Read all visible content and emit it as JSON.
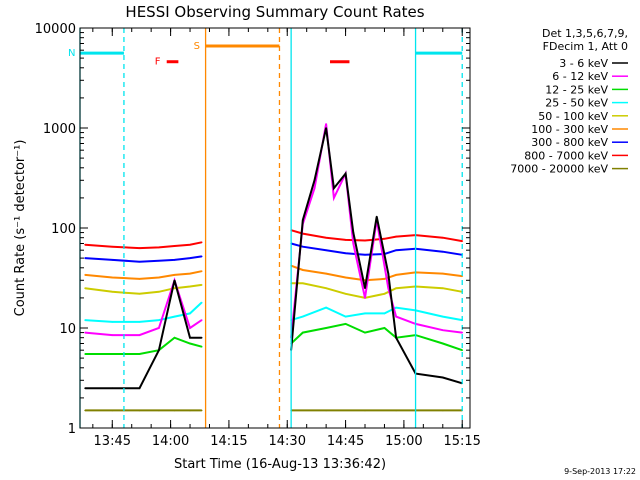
{
  "chart_data": {
    "type": "line",
    "title": "HESSI Observing Summary Count Rates",
    "xlabel": "Start Time (16-Aug-13 13:36:42)",
    "ylabel": "Count Rate (s⁻¹ detector⁻¹)",
    "y_scale": "log",
    "ylim": [
      1,
      10000
    ],
    "xlim": [
      "13:36:42",
      "15:17:00"
    ],
    "y_ticks": [
      "1",
      "10",
      "100",
      "1000",
      "10000"
    ],
    "x_ticks": [
      "13:45",
      "14:00",
      "14:15",
      "14:30",
      "14:45",
      "15:00",
      "15:15"
    ],
    "legend_header": [
      "Det 1,3,5,6,7,9,",
      "FDecim 1, Att 0"
    ],
    "legend_placement": "right",
    "series": [
      {
        "name": "3 - 6 keV",
        "color": "#000000",
        "x": [
          "13:38",
          "13:45",
          "13:52",
          "13:57",
          "14:01",
          "14:05",
          "14:08",
          "14:31",
          "14:34",
          "14:37",
          "14:40",
          "14:42",
          "14:45",
          "14:47",
          "14:50",
          "14:53",
          "14:56",
          "14:58",
          "15:03",
          "15:10",
          "15:15"
        ],
        "y": [
          2.5,
          2.5,
          2.5,
          6,
          30,
          8,
          8,
          6,
          120,
          300,
          1000,
          250,
          350,
          90,
          25,
          130,
          35,
          8,
          3.5,
          3.2,
          2.8
        ]
      },
      {
        "name": "6 - 12 keV",
        "color": "#ff00ff",
        "x": [
          "13:38",
          "13:45",
          "13:52",
          "13:57",
          "14:01",
          "14:05",
          "14:08",
          "14:31",
          "14:34",
          "14:37",
          "14:40",
          "14:42",
          "14:45",
          "14:47",
          "14:50",
          "14:53",
          "14:56",
          "14:58",
          "15:03",
          "15:10",
          "15:15"
        ],
        "y": [
          9,
          8.5,
          8.5,
          10,
          30,
          10,
          12,
          8,
          110,
          250,
          1100,
          200,
          350,
          70,
          20,
          120,
          25,
          13,
          11,
          9.5,
          9
        ]
      },
      {
        "name": "12 - 25 keV",
        "color": "#00dd00",
        "x": [
          "13:38",
          "13:45",
          "13:52",
          "13:57",
          "14:01",
          "14:05",
          "14:08",
          "14:31",
          "14:34",
          "14:40",
          "14:45",
          "14:50",
          "14:55",
          "14:58",
          "15:03",
          "15:10",
          "15:15"
        ],
        "y": [
          5.5,
          5.5,
          5.5,
          6,
          8,
          7,
          6.5,
          7,
          9,
          10,
          11,
          9,
          10,
          8,
          8.5,
          7,
          6
        ]
      },
      {
        "name": "25 - 50 keV",
        "color": "#00ffff",
        "x": [
          "13:38",
          "13:45",
          "13:52",
          "13:57",
          "14:01",
          "14:05",
          "14:08",
          "14:31",
          "14:34",
          "14:40",
          "14:45",
          "14:50",
          "14:55",
          "14:58",
          "15:03",
          "15:10",
          "15:15"
        ],
        "y": [
          12,
          11.5,
          11.5,
          12,
          13,
          14,
          18,
          12,
          13,
          16,
          13,
          14,
          14,
          16,
          15,
          13,
          12
        ]
      },
      {
        "name": "50 - 100 keV",
        "color": "#cccc00",
        "x": [
          "13:38",
          "13:45",
          "13:52",
          "13:57",
          "14:01",
          "14:05",
          "14:08",
          "14:31",
          "14:34",
          "14:40",
          "14:45",
          "14:50",
          "14:55",
          "14:58",
          "15:03",
          "15:10",
          "15:15"
        ],
        "y": [
          25,
          23,
          22,
          23,
          25,
          26,
          27,
          28,
          28,
          25,
          22,
          20,
          22,
          25,
          26,
          25,
          23
        ]
      },
      {
        "name": "100 - 300 keV",
        "color": "#ff8800",
        "x": [
          "13:38",
          "13:45",
          "13:52",
          "13:57",
          "14:01",
          "14:05",
          "14:08",
          "14:31",
          "14:34",
          "14:40",
          "14:45",
          "14:50",
          "14:55",
          "14:58",
          "15:03",
          "15:10",
          "15:15"
        ],
        "y": [
          34,
          32,
          31,
          32,
          34,
          35,
          37,
          42,
          38,
          35,
          32,
          30,
          31,
          34,
          36,
          35,
          33
        ]
      },
      {
        "name": "300 - 800 keV",
        "color": "#0000ff",
        "x": [
          "13:38",
          "13:45",
          "13:52",
          "13:57",
          "14:01",
          "14:05",
          "14:08",
          "14:31",
          "14:34",
          "14:40",
          "14:45",
          "14:50",
          "14:55",
          "14:58",
          "15:03",
          "15:10",
          "15:15"
        ],
        "y": [
          50,
          48,
          46,
          47,
          48,
          50,
          52,
          70,
          65,
          60,
          56,
          54,
          55,
          60,
          62,
          58,
          54
        ]
      },
      {
        "name": "800 - 7000 keV",
        "color": "#ff0000",
        "x": [
          "13:38",
          "13:45",
          "13:52",
          "13:57",
          "14:01",
          "14:05",
          "14:08",
          "14:31",
          "14:34",
          "14:40",
          "14:45",
          "14:50",
          "14:55",
          "14:58",
          "15:03",
          "15:10",
          "15:15"
        ],
        "y": [
          68,
          65,
          63,
          64,
          66,
          68,
          72,
          95,
          88,
          80,
          76,
          75,
          78,
          82,
          85,
          80,
          74
        ]
      },
      {
        "name": "7000 - 20000 keV",
        "color": "#808000",
        "x": [
          "13:38",
          "13:45",
          "13:52",
          "13:57",
          "14:01",
          "14:05",
          "14:08",
          "14:31",
          "14:40",
          "14:50",
          "14:58",
          "15:03",
          "15:10",
          "15:15"
        ],
        "y": [
          1.5,
          1.5,
          1.5,
          1.5,
          1.5,
          1.5,
          1.5,
          1.5,
          1.5,
          1.5,
          1.5,
          1.5,
          1.5,
          1.5
        ]
      }
    ],
    "flag_bars": [
      {
        "label": "N",
        "color": "#00e5ee",
        "start": "13:36:42",
        "end": "13:48:00",
        "level": 5600
      },
      {
        "label": "",
        "color": "#00e5ee",
        "start": "15:03:00",
        "end": "15:15:00",
        "level": 5600
      },
      {
        "label": "S",
        "color": "#ff8800",
        "start": "14:09:00",
        "end": "14:28:00",
        "level": 6600
      },
      {
        "label": "F",
        "color": "#ff0000",
        "start": "13:59:00",
        "end": "14:02:00",
        "level": 4600
      },
      {
        "label": "",
        "color": "#ff0000",
        "start": "14:41:00",
        "end": "14:46:00",
        "level": 4600
      }
    ],
    "flag_lines": [
      {
        "color": "#00e5ee",
        "style": "solid",
        "time": "13:36:42"
      },
      {
        "color": "#00e5ee",
        "style": "dashed",
        "time": "13:48:00"
      },
      {
        "color": "#ff8800",
        "style": "solid",
        "time": "14:09:00"
      },
      {
        "color": "#ff8800",
        "style": "dashed",
        "time": "14:28:00"
      },
      {
        "color": "#00e5ee",
        "style": "solid",
        "time": "14:31:00"
      },
      {
        "color": "#00e5ee",
        "style": "solid",
        "time": "15:03:00"
      },
      {
        "color": "#00e5ee",
        "style": "dashed",
        "time": "15:15:00"
      }
    ],
    "timestamp": "9-Sep-2013 17:22"
  }
}
